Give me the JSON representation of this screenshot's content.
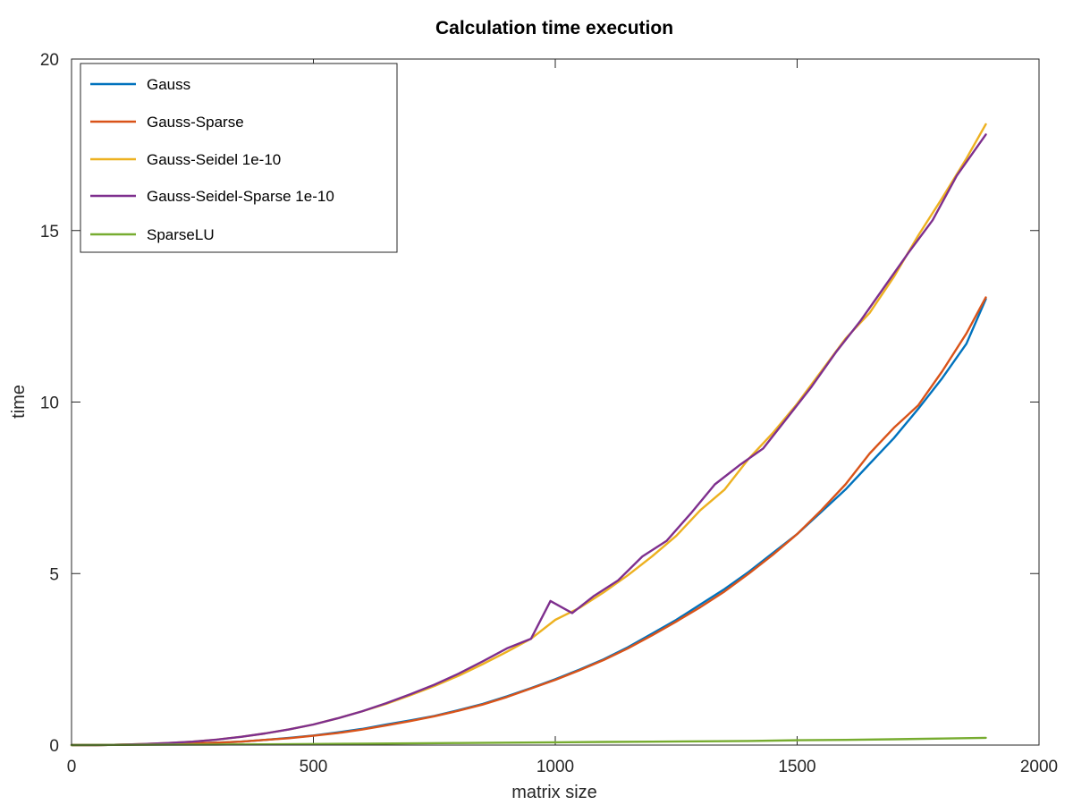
{
  "chart_data": {
    "type": "line",
    "title": "Calculation time execution",
    "xlabel": "matrix size",
    "ylabel": "time",
    "xlim": [
      0,
      2000
    ],
    "ylim": [
      0,
      20
    ],
    "xticks": [
      0,
      500,
      1000,
      1500,
      2000
    ],
    "yticks": [
      0,
      5,
      10,
      15,
      20
    ],
    "xtick_labels": [
      "0",
      "500",
      "1000",
      "1500",
      "2000"
    ],
    "ytick_labels": [
      "0",
      "5",
      "10",
      "15",
      "20"
    ],
    "grid": false,
    "legend_position": "top-left",
    "series": [
      {
        "name": "Gauss",
        "color": "#0072bd",
        "x": [
          0,
          50,
          100,
          150,
          200,
          250,
          300,
          350,
          400,
          450,
          500,
          550,
          600,
          650,
          700,
          750,
          800,
          850,
          900,
          950,
          1000,
          1050,
          1100,
          1150,
          1200,
          1250,
          1300,
          1350,
          1400,
          1450,
          1500,
          1550,
          1600,
          1650,
          1700,
          1750,
          1800,
          1850,
          1890
        ],
        "y": [
          0,
          0,
          0.01,
          0.02,
          0.03,
          0.05,
          0.07,
          0.1,
          0.15,
          0.21,
          0.28,
          0.37,
          0.47,
          0.6,
          0.72,
          0.85,
          1.02,
          1.2,
          1.42,
          1.66,
          1.92,
          2.2,
          2.5,
          2.85,
          3.25,
          3.65,
          4.1,
          4.55,
          5.05,
          5.6,
          6.15,
          6.8,
          7.45,
          8.2,
          8.95,
          9.8,
          10.7,
          11.7,
          13.0
        ]
      },
      {
        "name": "Gauss-Sparse",
        "color": "#d95319",
        "x": [
          0,
          50,
          100,
          150,
          200,
          250,
          300,
          350,
          400,
          450,
          500,
          550,
          600,
          650,
          700,
          750,
          800,
          850,
          900,
          950,
          1000,
          1050,
          1100,
          1150,
          1200,
          1250,
          1300,
          1350,
          1400,
          1450,
          1500,
          1550,
          1600,
          1650,
          1700,
          1750,
          1800,
          1850,
          1890
        ],
        "y": [
          0,
          0,
          0.01,
          0.02,
          0.03,
          0.05,
          0.07,
          0.1,
          0.15,
          0.2,
          0.27,
          0.35,
          0.45,
          0.57,
          0.7,
          0.84,
          1.0,
          1.18,
          1.4,
          1.65,
          1.9,
          2.18,
          2.48,
          2.82,
          3.2,
          3.6,
          4.02,
          4.48,
          5.0,
          5.55,
          6.15,
          6.85,
          7.6,
          8.5,
          9.25,
          9.9,
          10.9,
          12.0,
          13.05
        ]
      },
      {
        "name": "Gauss-Seidel 1e-10",
        "color": "#edb120",
        "x": [
          0,
          50,
          100,
          150,
          200,
          250,
          300,
          350,
          400,
          450,
          500,
          550,
          600,
          650,
          700,
          750,
          800,
          850,
          900,
          950,
          1000,
          1050,
          1100,
          1150,
          1200,
          1250,
          1300,
          1350,
          1400,
          1450,
          1500,
          1550,
          1600,
          1650,
          1700,
          1750,
          1800,
          1850,
          1890
        ],
        "y": [
          0,
          0,
          0.01,
          0.03,
          0.06,
          0.1,
          0.16,
          0.24,
          0.34,
          0.46,
          0.6,
          0.78,
          0.98,
          1.2,
          1.45,
          1.72,
          2.02,
          2.36,
          2.72,
          3.1,
          3.65,
          4.0,
          4.45,
          4.95,
          5.5,
          6.1,
          6.85,
          7.45,
          8.35,
          9.1,
          9.95,
          10.9,
          11.85,
          12.6,
          13.65,
          14.85,
          15.95,
          17.1,
          18.1
        ]
      },
      {
        "name": "Gauss-Seidel-Sparse 1e-10",
        "color": "#7e2f8e",
        "x": [
          0,
          50,
          100,
          150,
          200,
          250,
          300,
          350,
          400,
          450,
          500,
          550,
          600,
          650,
          700,
          750,
          800,
          850,
          900,
          950,
          990,
          1035,
          1080,
          1130,
          1180,
          1230,
          1280,
          1330,
          1380,
          1430,
          1480,
          1530,
          1580,
          1630,
          1680,
          1730,
          1780,
          1830,
          1890
        ],
        "y": [
          0,
          0,
          0.01,
          0.03,
          0.06,
          0.1,
          0.16,
          0.24,
          0.34,
          0.46,
          0.6,
          0.78,
          0.98,
          1.22,
          1.48,
          1.76,
          2.08,
          2.44,
          2.82,
          3.1,
          4.2,
          3.85,
          4.35,
          4.8,
          5.5,
          5.95,
          6.75,
          7.6,
          8.15,
          8.65,
          9.55,
          10.45,
          11.45,
          12.35,
          13.35,
          14.35,
          15.3,
          16.6,
          17.8
        ]
      },
      {
        "name": "SparseLU",
        "color": "#77ac30",
        "x": [
          0,
          100,
          200,
          300,
          400,
          500,
          600,
          700,
          800,
          900,
          1000,
          1100,
          1200,
          1300,
          1400,
          1500,
          1600,
          1700,
          1800,
          1890
        ],
        "y": [
          0,
          0.005,
          0.01,
          0.015,
          0.02,
          0.03,
          0.04,
          0.05,
          0.06,
          0.07,
          0.08,
          0.09,
          0.1,
          0.11,
          0.12,
          0.14,
          0.15,
          0.17,
          0.19,
          0.21
        ]
      }
    ]
  }
}
